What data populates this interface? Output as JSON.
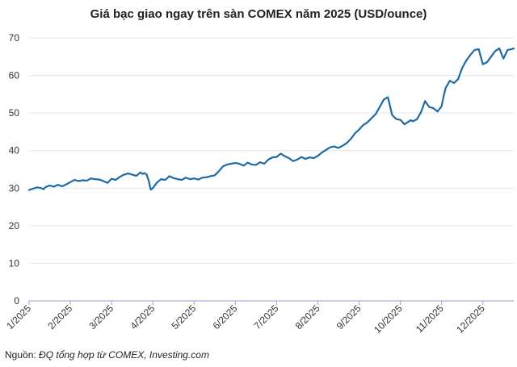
{
  "chart_data": {
    "type": "line",
    "title": "Giá bạc giao ngay trên sàn COMEX năm 2025 (USD/ounce)",
    "xlabel": "",
    "ylabel": "",
    "ylim": [
      0,
      70
    ],
    "y_ticks": [
      0,
      10,
      20,
      30,
      40,
      50,
      60,
      70
    ],
    "x_range": [
      1,
      12.75
    ],
    "x_tick_labels": [
      "1/2025",
      "2/2025",
      "3/2025",
      "4/2025",
      "5/2025",
      "6/2025",
      "7/2025",
      "8/2025",
      "9/2025",
      "10/2025",
      "11/2025",
      "12/2025"
    ],
    "grid": true,
    "legend": "none",
    "line_color": "#1f6aa5",
    "axis_color": "#b9a6d9",
    "series": [
      {
        "x": [
          1.0,
          1.1,
          1.2,
          1.3,
          1.35,
          1.4,
          1.5,
          1.6,
          1.7,
          1.8,
          1.9,
          2.0,
          2.1,
          2.2,
          2.3,
          2.4,
          2.5,
          2.6,
          2.7,
          2.8,
          2.9,
          3.0,
          3.1,
          3.2,
          3.3,
          3.4,
          3.5,
          3.6,
          3.7,
          3.75,
          3.8,
          3.85,
          3.9,
          3.95,
          4.0,
          4.1,
          4.2,
          4.3,
          4.4,
          4.5,
          4.6,
          4.7,
          4.8,
          4.9,
          5.0,
          5.1,
          5.2,
          5.3,
          5.4,
          5.5,
          5.6,
          5.7,
          5.8,
          5.9,
          6.0,
          6.1,
          6.2,
          6.3,
          6.4,
          6.5,
          6.6,
          6.7,
          6.8,
          6.9,
          7.0,
          7.1,
          7.2,
          7.3,
          7.4,
          7.5,
          7.6,
          7.7,
          7.8,
          7.9,
          8.0,
          8.1,
          8.2,
          8.3,
          8.4,
          8.5,
          8.6,
          8.7,
          8.8,
          8.9,
          9.0,
          9.1,
          9.2,
          9.3,
          9.4,
          9.5,
          9.6,
          9.7,
          9.8,
          9.9,
          10.0,
          10.1,
          10.2,
          10.25,
          10.3,
          10.4,
          10.5,
          10.6,
          10.7,
          10.8,
          10.9,
          11.0,
          11.05,
          11.1,
          11.2,
          11.3,
          11.4,
          11.5,
          11.6,
          11.7,
          11.8,
          11.9,
          12.0,
          12.1,
          12.2,
          12.3,
          12.4,
          12.5,
          12.6,
          12.7,
          12.75
        ],
        "y": [
          29.5,
          29.9,
          30.2,
          30.0,
          29.7,
          30.3,
          30.7,
          30.4,
          30.9,
          30.5,
          31.0,
          31.6,
          32.2,
          31.9,
          32.1,
          32.0,
          32.6,
          32.4,
          32.3,
          31.9,
          31.4,
          32.5,
          32.2,
          33.0,
          33.6,
          33.9,
          33.6,
          33.3,
          34.2,
          33.8,
          34.0,
          33.6,
          32.0,
          29.6,
          30.0,
          31.5,
          32.4,
          32.2,
          33.2,
          32.7,
          32.4,
          32.2,
          32.8,
          32.4,
          32.6,
          32.3,
          32.8,
          32.9,
          33.2,
          33.4,
          34.5,
          35.8,
          36.3,
          36.5,
          36.7,
          36.5,
          36.0,
          36.8,
          36.3,
          36.2,
          36.9,
          36.5,
          37.6,
          38.2,
          38.3,
          39.2,
          38.5,
          38.0,
          37.2,
          37.6,
          38.3,
          37.8,
          38.2,
          38.0,
          38.6,
          39.5,
          40.2,
          40.9,
          41.1,
          40.7,
          41.3,
          42.0,
          43.1,
          44.6,
          45.6,
          46.8,
          47.5,
          48.6,
          49.7,
          51.6,
          53.6,
          54.2,
          49.5,
          48.4,
          48.2,
          47.0,
          47.7,
          48.1,
          47.8,
          48.3,
          50.2,
          53.2,
          51.6,
          51.3,
          50.4,
          51.8,
          54.5,
          56.7,
          58.6,
          58.0,
          59.0,
          62.0,
          64.0,
          65.5,
          66.8,
          67.0,
          63.0,
          63.5,
          65.0,
          66.5,
          67.2,
          64.5,
          66.8,
          67.0,
          67.2
        ]
      }
    ]
  },
  "source": {
    "label": "Nguồn: ",
    "text": "ĐQ tổng hợp từ COMEX, Investing.com"
  }
}
